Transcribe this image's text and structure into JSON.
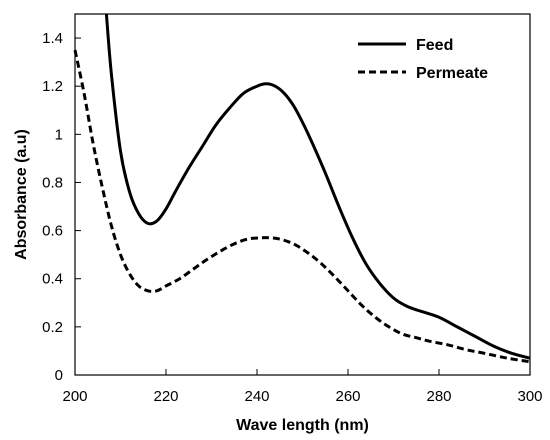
{
  "chart_data": {
    "type": "line",
    "xlabel": "Wave length (nm)",
    "ylabel": "Absorbance (a.u)",
    "xlim": [
      200,
      300
    ],
    "ylim": [
      0,
      1.5
    ],
    "xticks": [
      200,
      220,
      240,
      260,
      280,
      300
    ],
    "yticks": [
      0,
      0.2,
      0.4,
      0.6,
      0.8,
      1,
      1.2,
      1.4
    ],
    "grid": false,
    "legend": "top-right",
    "series": [
      {
        "name": "Feed",
        "style": "solid",
        "color": "#000000",
        "x": [
          206.9,
          208,
          210,
          212,
          214,
          216,
          218,
          220,
          222,
          225,
          228,
          231,
          234,
          237,
          240,
          242,
          244,
          246,
          248,
          250,
          252,
          255,
          258,
          261,
          264,
          267,
          270,
          273,
          276,
          280,
          284,
          288,
          292,
          296,
          300
        ],
        "y": [
          1.5,
          1.25,
          0.93,
          0.76,
          0.67,
          0.63,
          0.64,
          0.69,
          0.76,
          0.86,
          0.95,
          1.04,
          1.11,
          1.17,
          1.2,
          1.21,
          1.2,
          1.17,
          1.12,
          1.05,
          0.97,
          0.84,
          0.7,
          0.57,
          0.46,
          0.38,
          0.32,
          0.285,
          0.265,
          0.24,
          0.2,
          0.16,
          0.12,
          0.09,
          0.07
        ]
      },
      {
        "name": "Permeate",
        "style": "dashed",
        "color": "#000000",
        "x": [
          200,
          202,
          204,
          206,
          208,
          210,
          212,
          214,
          216,
          218,
          220,
          223,
          226,
          229,
          232,
          235,
          238,
          241,
          243,
          245,
          248,
          251,
          254,
          257,
          260,
          263,
          266,
          269,
          272,
          275,
          278,
          282,
          286,
          290,
          295,
          300
        ],
        "y": [
          1.35,
          1.17,
          0.96,
          0.78,
          0.62,
          0.5,
          0.42,
          0.37,
          0.35,
          0.35,
          0.37,
          0.4,
          0.44,
          0.48,
          0.515,
          0.545,
          0.565,
          0.57,
          0.57,
          0.565,
          0.545,
          0.51,
          0.465,
          0.41,
          0.35,
          0.29,
          0.24,
          0.2,
          0.17,
          0.155,
          0.14,
          0.125,
          0.105,
          0.09,
          0.07,
          0.055
        ]
      }
    ]
  }
}
